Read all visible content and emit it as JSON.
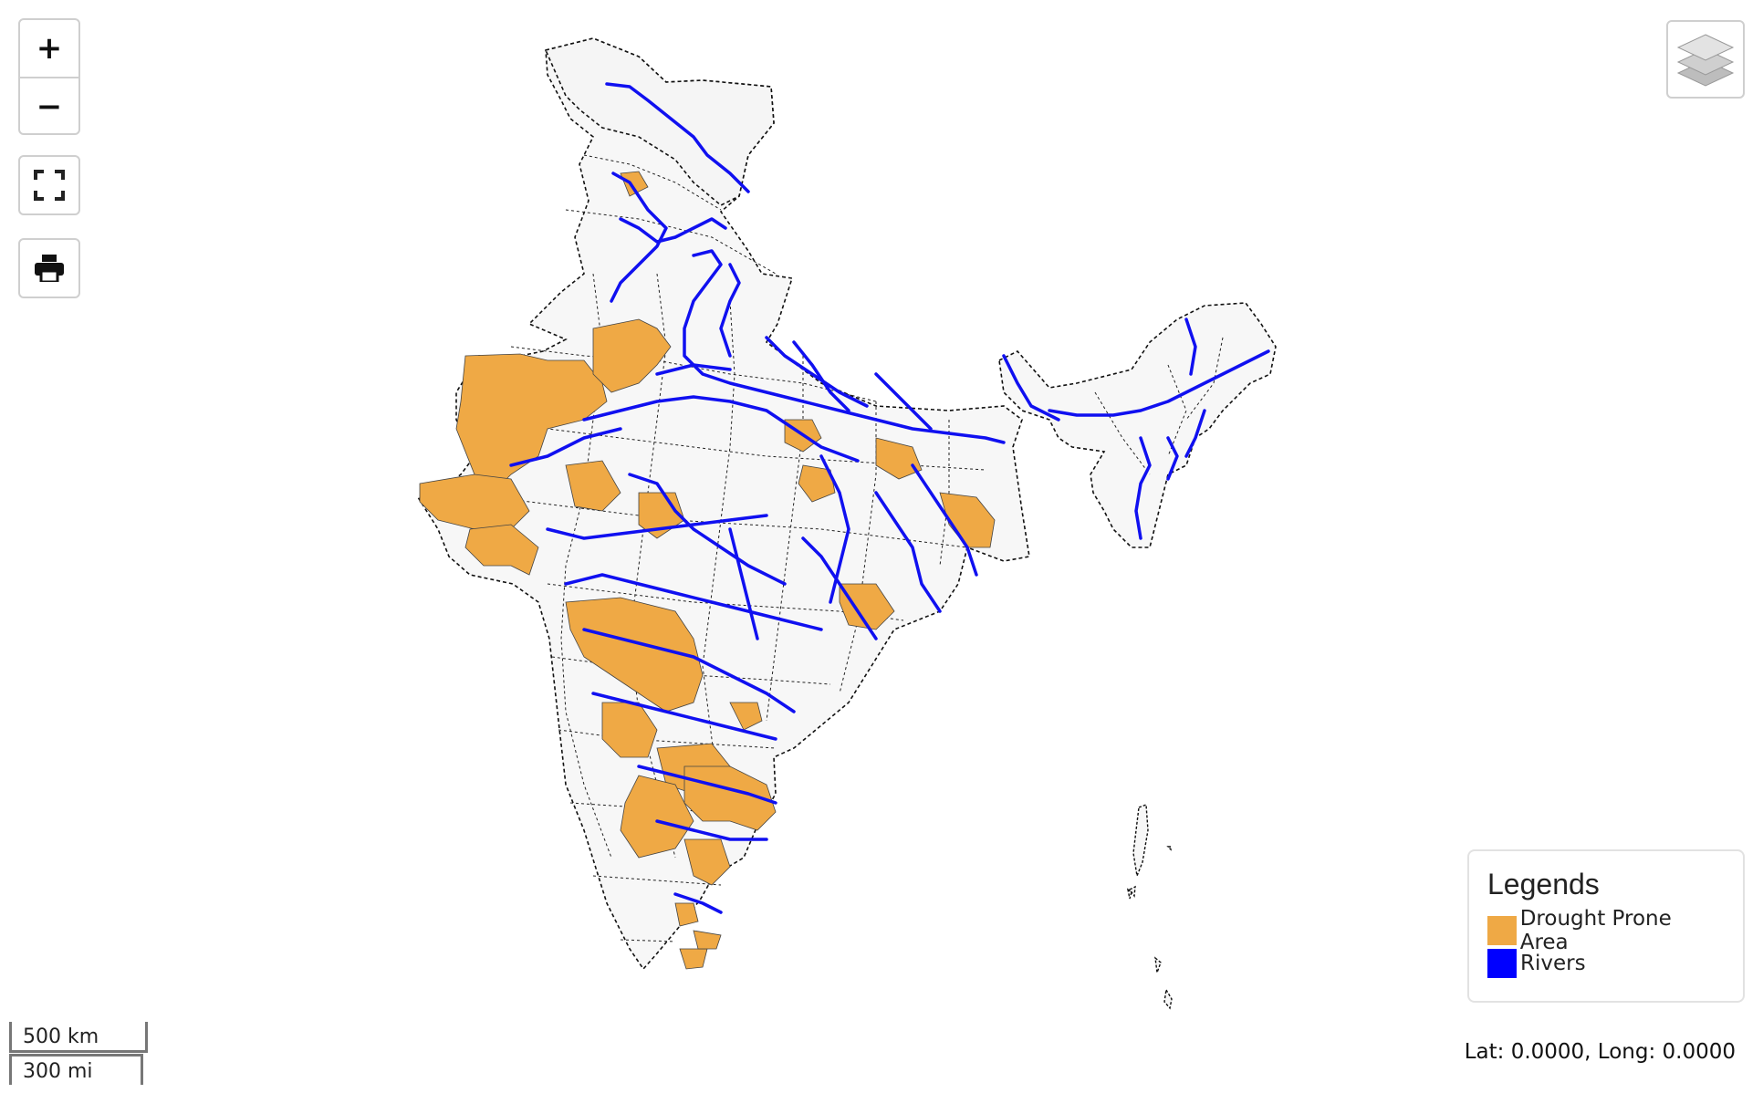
{
  "controls": {
    "zoom_in": "+",
    "zoom_out": "−"
  },
  "icons": {
    "fullscreen": "fullscreen-icon",
    "print": "printer-icon",
    "layers": "layers-icon"
  },
  "legend": {
    "title": "Legends",
    "items": [
      {
        "label": "Drought Prone Area",
        "color": "#efa945"
      },
      {
        "label": "Rivers",
        "color": "#0000ff"
      }
    ]
  },
  "coords": "Lat: 0.0000, Long: 0.0000",
  "scale": {
    "km": "500 km",
    "mi": "300 mi"
  },
  "colors": {
    "land": "#f7f7f7",
    "boundary": "#111111",
    "drought": "#efa945",
    "river": "#1010f0"
  }
}
